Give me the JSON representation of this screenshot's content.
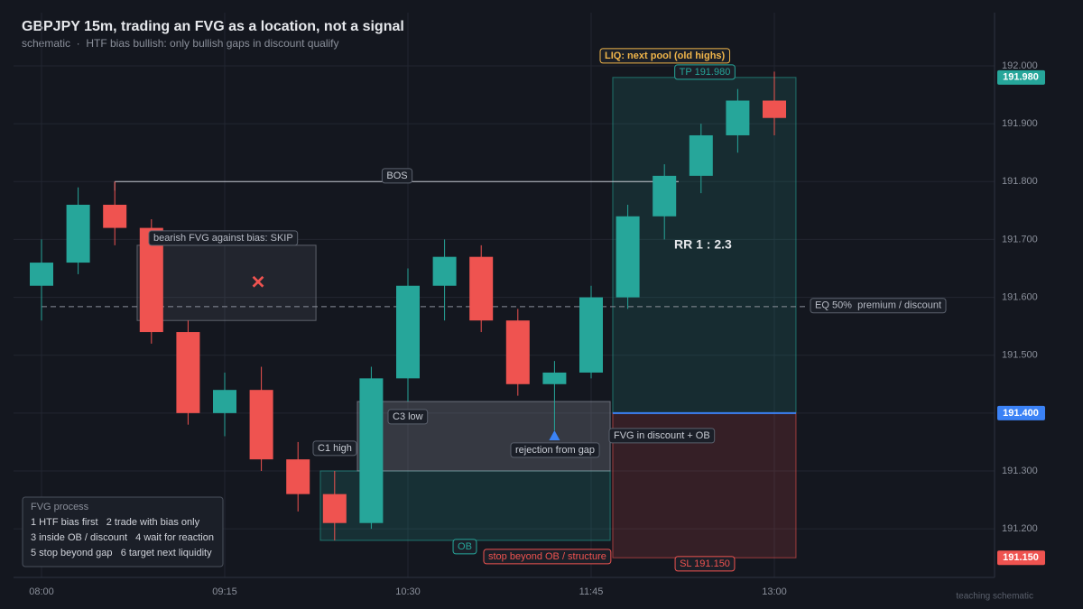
{
  "chart_data": {
    "type": "candlestick",
    "title": "GBPJPY 15m, trading an FVG as a location, not a signal",
    "subtitle": "schematic  ·  HTF bias bullish: only bullish gaps in discount qualify",
    "categories": [
      "08:00",
      null,
      null,
      null,
      null,
      "09:15",
      null,
      null,
      null,
      null,
      "10:30",
      null,
      null,
      null,
      null,
      "11:45",
      null,
      null,
      null,
      null,
      "13:00"
    ],
    "open": [
      191.62,
      191.66,
      191.76,
      191.72,
      191.54,
      191.4,
      191.44,
      191.32,
      191.26,
      191.21,
      191.46,
      191.62,
      191.67,
      191.56,
      191.45,
      191.47,
      191.6,
      191.74,
      191.81,
      191.88,
      191.94
    ],
    "high": [
      191.7,
      191.79,
      191.8,
      191.735,
      191.56,
      191.47,
      191.48,
      191.35,
      191.3,
      191.48,
      191.65,
      191.7,
      191.69,
      191.58,
      191.49,
      191.62,
      191.76,
      191.83,
      191.9,
      191.96,
      191.99
    ],
    "low": [
      191.56,
      191.64,
      191.69,
      191.52,
      191.38,
      191.36,
      191.3,
      191.23,
      191.18,
      191.2,
      191.42,
      191.56,
      191.54,
      191.43,
      191.37,
      191.46,
      191.58,
      191.7,
      191.78,
      191.85,
      191.88
    ],
    "close": [
      191.66,
      191.76,
      191.72,
      191.54,
      191.4,
      191.44,
      191.32,
      191.26,
      191.21,
      191.46,
      191.62,
      191.67,
      191.56,
      191.45,
      191.47,
      191.6,
      191.74,
      191.81,
      191.88,
      191.94,
      191.91
    ],
    "up_color": "#26a69a",
    "down_color": "#ef5350",
    "ylim": [
      191.116,
      192.092
    ],
    "yticks": [
      {
        "value": 191.2,
        "label": "191.200"
      },
      {
        "value": 191.3,
        "label": "191.300"
      },
      {
        "value": 191.4,
        "label": "191.400"
      },
      {
        "value": 191.5,
        "label": "191.500"
      },
      {
        "value": 191.6,
        "label": "191.600"
      },
      {
        "value": 191.7,
        "label": "191.700"
      },
      {
        "value": 191.8,
        "label": "191.800"
      },
      {
        "value": 191.9,
        "label": "191.900"
      },
      {
        "value": 192.0,
        "label": "192.000"
      }
    ],
    "grid": true,
    "levels": [
      {
        "name": "EQ 50%  premium / discount",
        "value": 191.584
      },
      {
        "name": "BOS",
        "value": 191.8
      }
    ],
    "entry": 191.4,
    "zones": [
      {
        "label": "bearish FVG against bias: SKIP",
        "from": 191.56,
        "to": 191.69
      },
      {
        "label": "OB",
        "from": 191.18,
        "to": 191.3
      },
      {
        "label": "FVG in discount + OB",
        "from": 191.3,
        "to": 191.42
      },
      {
        "label": "TP 191.980",
        "from": 191.4,
        "to": 191.98
      },
      {
        "label": "SL 191.150",
        "from": 191.15,
        "to": 191.4
      }
    ],
    "price_tags": [
      {
        "value": 191.98,
        "label": "191.980",
        "color": "#26a69a"
      },
      {
        "value": 191.4,
        "label": "191.400",
        "color": "#3b82f6"
      },
      {
        "value": 191.15,
        "label": "191.150",
        "color": "#ef5350"
      }
    ],
    "notes": [
      "C1 high",
      "C3 low",
      "rejection from gap",
      "stop beyond OB / structure",
      "LIQ: next pool (old highs)",
      "RR 1 : 2.3"
    ],
    "process": {
      "title": "FVG process",
      "lines": [
        "1 HTF bias first   2 trade with bias only",
        "3 inside OB / discount   4 wait for reaction",
        "5 stop beyond gap   6 target next liquidity"
      ]
    },
    "footer": "teaching schematic"
  }
}
